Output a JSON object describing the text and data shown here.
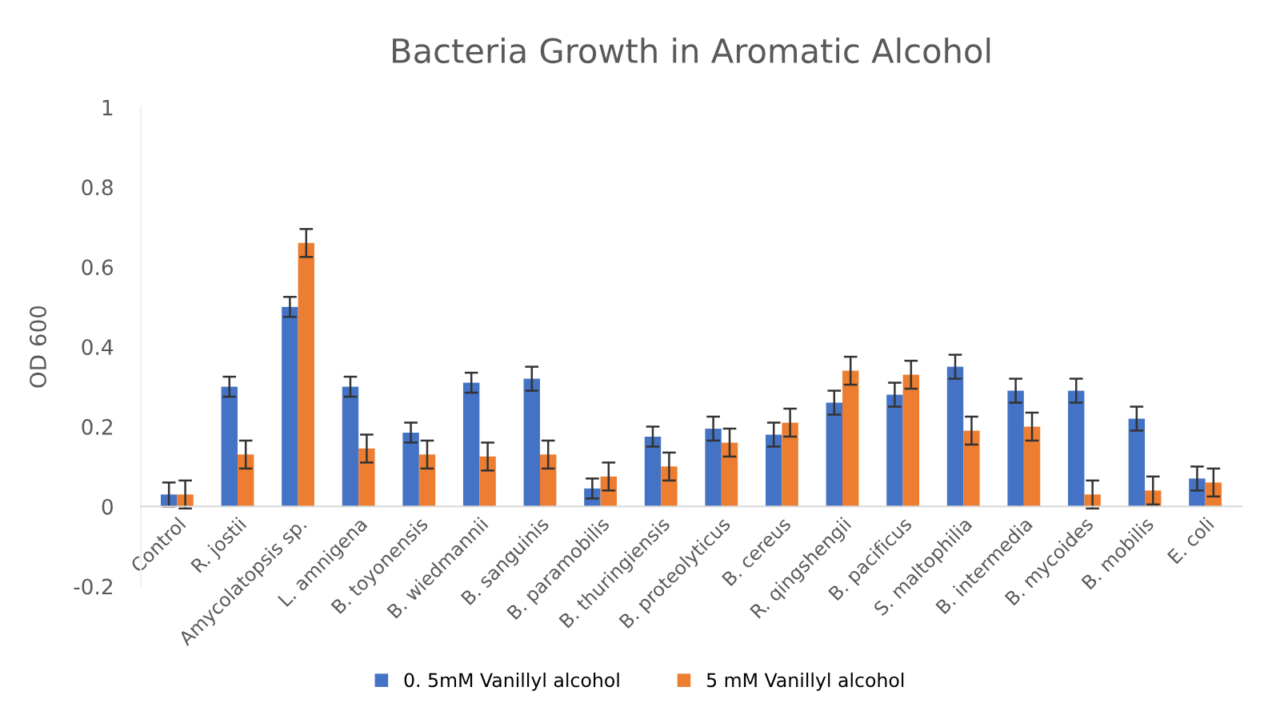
{
  "chart_data": {
    "type": "bar",
    "title": "Bacteria Growth in Aromatic Alcohol",
    "ylabel": "OD 600",
    "categories": [
      "Control",
      "R. jostii",
      "Amycolatopsis sp.",
      "L. amnigena",
      "B. toyonensis",
      "B. wiedmannii",
      "B. sanguinis",
      "B. paramobilis",
      "B. thuringiensis",
      "B. proteolyticus",
      "B. cereus",
      "R. qingshengii",
      "B. pacificus",
      "S. maltophilia",
      "B. intermedia",
      "B. mycoides",
      "B. mobilis",
      "E. coli"
    ],
    "series": [
      {
        "name": "0. 5mM Vanillyl alcohol",
        "color": "#4472c4",
        "values": [
          0.03,
          0.3,
          0.5,
          0.3,
          0.185,
          0.31,
          0.32,
          0.045,
          0.175,
          0.195,
          0.18,
          0.26,
          0.28,
          0.35,
          0.29,
          0.29,
          0.22,
          0.07
        ],
        "errors": [
          0.03,
          0.025,
          0.025,
          0.025,
          0.025,
          0.025,
          0.03,
          0.025,
          0.025,
          0.03,
          0.03,
          0.03,
          0.03,
          0.03,
          0.03,
          0.03,
          0.03,
          0.03
        ]
      },
      {
        "name": "5 mM Vanillyl alcohol",
        "color": "#ed7d31",
        "values": [
          0.03,
          0.13,
          0.66,
          0.145,
          0.13,
          0.125,
          0.13,
          0.075,
          0.1,
          0.16,
          0.21,
          0.34,
          0.33,
          0.19,
          0.2,
          0.03,
          0.04,
          0.06
        ],
        "errors": [
          0.035,
          0.035,
          0.035,
          0.035,
          0.035,
          0.035,
          0.035,
          0.035,
          0.035,
          0.035,
          0.035,
          0.035,
          0.035,
          0.035,
          0.035,
          0.035,
          0.035,
          0.035
        ]
      }
    ],
    "ylim": [
      -0.2,
      1
    ],
    "yticks": [
      -0.2,
      0,
      0.2,
      0.4,
      0.6,
      0.8,
      1
    ],
    "grid": false,
    "legend": "bottom"
  }
}
